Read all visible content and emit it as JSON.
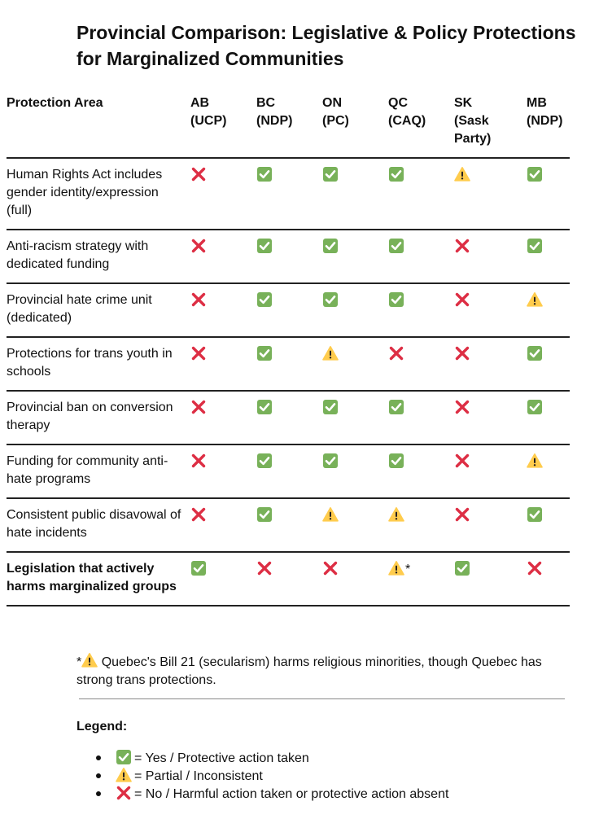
{
  "title": "Provincial Comparison: Legislative & Policy Protections for Marginalized Communities",
  "colors": {
    "yes": "#78b159",
    "no": "#dd2e44",
    "partial": "#ffcc4d",
    "rule": "#222222"
  },
  "icons": {
    "yes": "check-mark-button-icon",
    "partial": "warning-icon",
    "no": "cross-mark-icon"
  },
  "table": {
    "header_area": "Protection Area",
    "provinces": [
      {
        "code": "AB",
        "party": "(UCP)"
      },
      {
        "code": "BC",
        "party": "(NDP)"
      },
      {
        "code": "ON",
        "party": "(PC)"
      },
      {
        "code": "QC",
        "party": "(CAQ)"
      },
      {
        "code": "SK",
        "party": "(Sask Party)"
      },
      {
        "code": "MB",
        "party": "(NDP)"
      }
    ],
    "rows": [
      {
        "area": "Human Rights Act includes gender identity/expression (full)",
        "values": [
          "no",
          "yes",
          "yes",
          "yes",
          "partial",
          "yes"
        ]
      },
      {
        "area": "Anti-racism strategy with dedicated funding",
        "values": [
          "no",
          "yes",
          "yes",
          "yes",
          "no",
          "yes"
        ]
      },
      {
        "area": "Provincial hate crime unit (dedicated)",
        "values": [
          "no",
          "yes",
          "yes",
          "yes",
          "no",
          "partial"
        ]
      },
      {
        "area": "Protections for trans youth in schools",
        "values": [
          "no",
          "yes",
          "partial",
          "no",
          "no",
          "yes"
        ]
      },
      {
        "area": "Provincial ban on conversion therapy",
        "values": [
          "no",
          "yes",
          "yes",
          "yes",
          "no",
          "yes"
        ]
      },
      {
        "area": "Funding for community anti-hate programs",
        "values": [
          "no",
          "yes",
          "yes",
          "yes",
          "no",
          "partial"
        ]
      },
      {
        "area": "Consistent public disavowal of hate incidents",
        "values": [
          "no",
          "yes",
          "partial",
          "partial",
          "no",
          "yes"
        ]
      },
      {
        "area": "Legislation that actively harms marginalized groups",
        "values": [
          "yes",
          "no",
          "no",
          "partial",
          "yes",
          "no"
        ],
        "footnote_col": 3
      }
    ]
  },
  "footnote": {
    "marker": "*",
    "text": "Quebec's Bill 21 (secularism) harms religious minorities, though Quebec has strong trans protections."
  },
  "legend": {
    "title": "Legend:",
    "items": [
      {
        "icon": "yes",
        "label": "= Yes / Protective action taken"
      },
      {
        "icon": "partial",
        "label": "= Partial / Inconsistent"
      },
      {
        "icon": "no",
        "label": "= No / Harmful action taken or protective action absent"
      }
    ]
  }
}
